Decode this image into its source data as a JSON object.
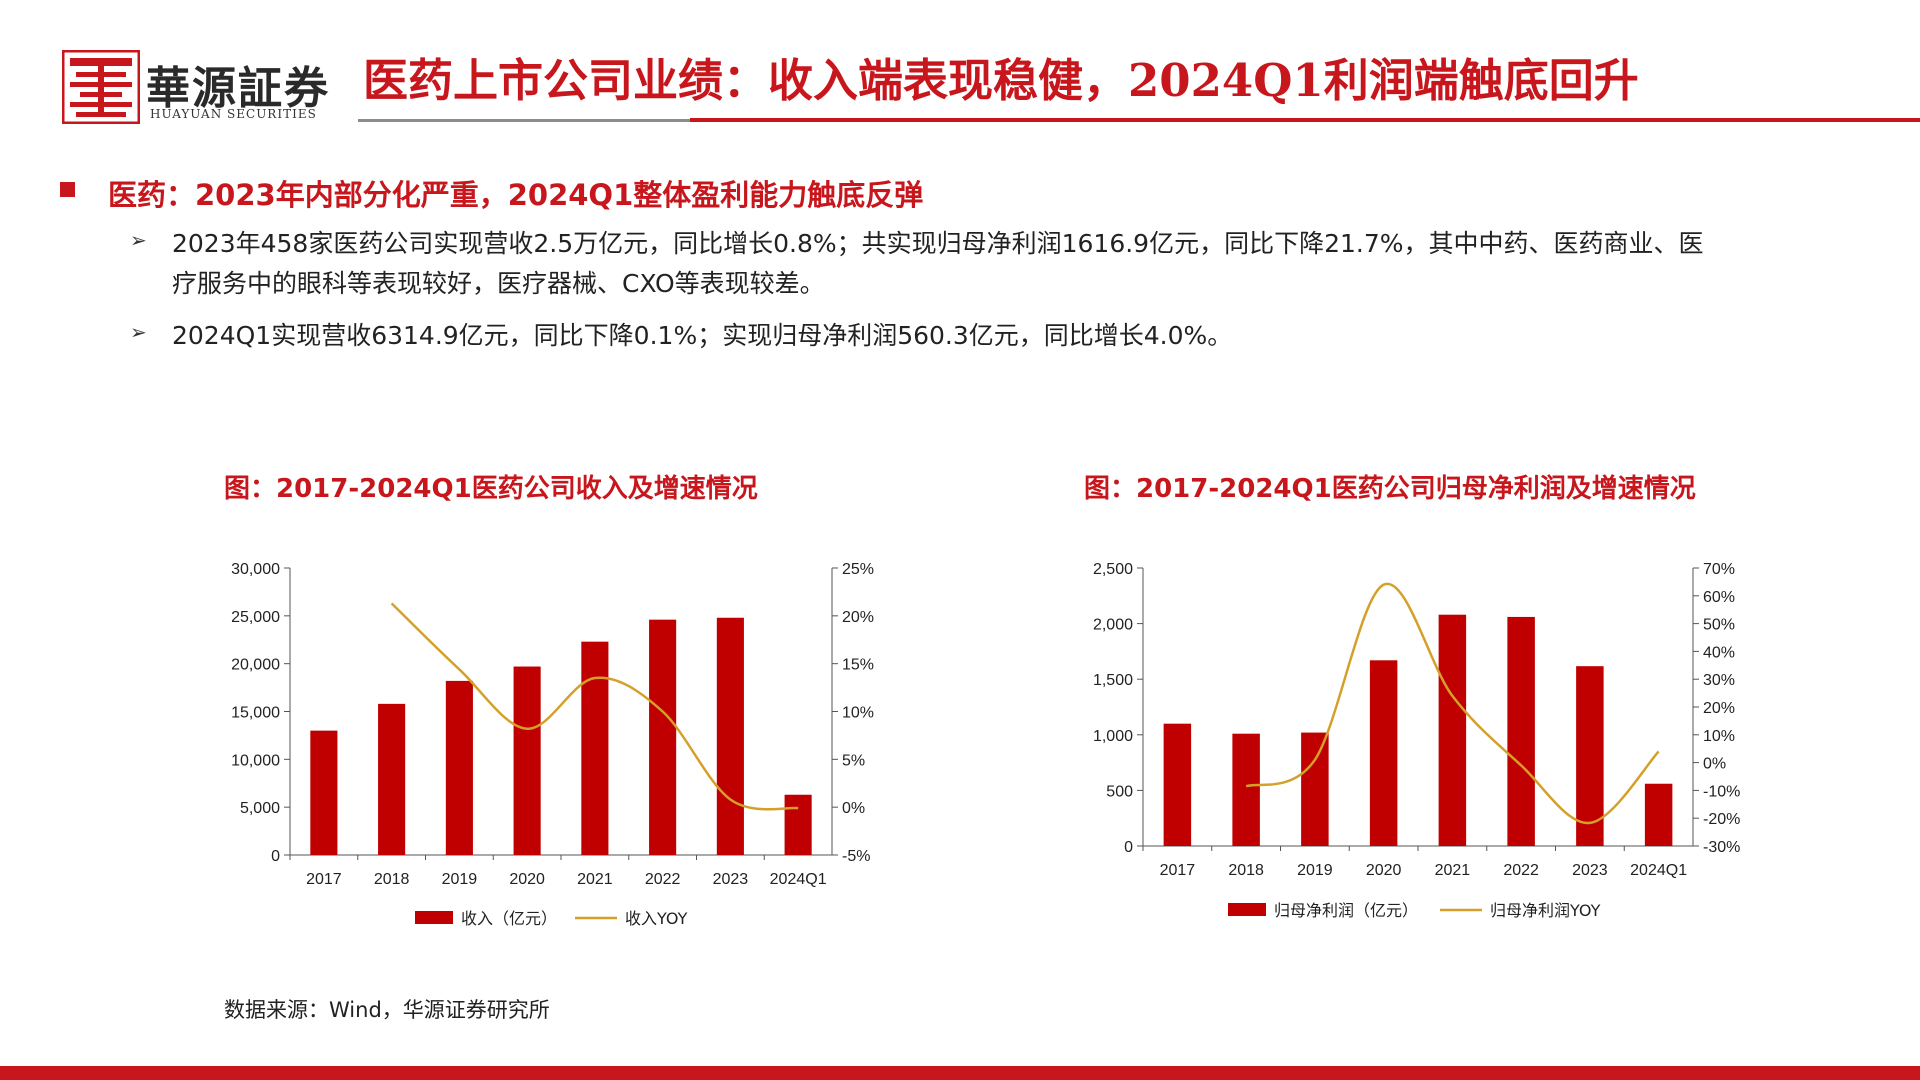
{
  "header": {
    "brand_cn": "華源証券",
    "brand_en": "HUAYUAN SECURITIES",
    "title": "医药上市公司业绩：收入端表现稳健，2024Q1利润端触底回升"
  },
  "section": {
    "heading": "医药：2023年内部分化严重，2024Q1整体盈利能力触底反弹",
    "bullet_1_line_1": "2023年458家医药公司实现营收2.5万亿元，同比增长0.8%；共实现归母净利润1616.9亿元，同比下降21.7%，其中中药、医药商业、医",
    "bullet_1_line_2": "疗服务中的眼科等表现较好，医疗器械、CXO等表现较差。",
    "bullet_2": "2024Q1实现营收6314.9亿元，同比下降0.1%；实现归母净利润560.3亿元，同比增长4.0%。"
  },
  "source": "数据来源：Wind，华源证券研究所",
  "colors": {
    "brand_red": "#c8161d",
    "bar": "#c00000",
    "line": "#d4a02a"
  },
  "chart_data": [
    {
      "type": "bar",
      "title": "图：2017-2024Q1医药公司收入及增速情况",
      "categories": [
        "2017",
        "2018",
        "2019",
        "2020",
        "2021",
        "2022",
        "2023",
        "2024Q1"
      ],
      "series": [
        {
          "name": "收入（亿元）",
          "type": "bar",
          "axis": "left",
          "values": [
            13000,
            15800,
            18200,
            19700,
            22300,
            24600,
            24800,
            6300
          ]
        },
        {
          "name": "收入YOY",
          "type": "line",
          "axis": "right",
          "values": [
            null,
            21.3,
            14.4,
            8.2,
            13.5,
            10.0,
            0.8,
            -0.1
          ]
        }
      ],
      "y_left": {
        "min": 0,
        "max": 30000,
        "ticks": [
          "0",
          "5,000",
          "10,000",
          "15,000",
          "20,000",
          "25,000",
          "30,000"
        ]
      },
      "y_right": {
        "min": -5,
        "max": 25,
        "ticks": [
          "-5%",
          "0%",
          "5%",
          "10%",
          "15%",
          "20%",
          "25%"
        ]
      },
      "legend_position": "bottom",
      "grid": false
    },
    {
      "type": "bar",
      "title": "图：2017-2024Q1医药公司归母净利润及增速情况",
      "categories": [
        "2017",
        "2018",
        "2019",
        "2020",
        "2021",
        "2022",
        "2023",
        "2024Q1"
      ],
      "series": [
        {
          "name": "归母净利润（亿元）",
          "type": "bar",
          "axis": "left",
          "values": [
            1100,
            1010,
            1020,
            1670,
            2080,
            2060,
            1617,
            560
          ]
        },
        {
          "name": "归母净利润YOY",
          "type": "line",
          "axis": "right",
          "values": [
            null,
            -8.5,
            1.0,
            64.0,
            24.0,
            -1.0,
            -21.7,
            4.0
          ]
        }
      ],
      "y_left": {
        "min": 0,
        "max": 2500,
        "ticks": [
          "0",
          "500",
          "1,000",
          "1,500",
          "2,000",
          "2,500"
        ]
      },
      "y_right": {
        "min": -30,
        "max": 70,
        "ticks": [
          "-30%",
          "-20%",
          "-10%",
          "0%",
          "10%",
          "20%",
          "30%",
          "40%",
          "50%",
          "60%",
          "70%"
        ]
      },
      "legend_position": "bottom",
      "grid": false
    }
  ]
}
